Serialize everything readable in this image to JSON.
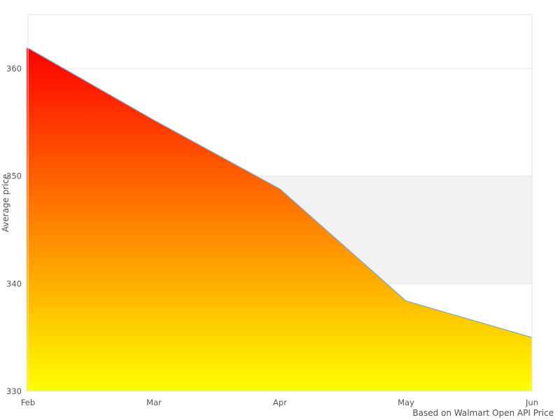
{
  "chart_data": {
    "type": "area",
    "title": "",
    "categories": [
      "Feb",
      "Mar",
      "Apr",
      "May",
      "Jun"
    ],
    "series": [
      {
        "name": "Average price",
        "values": [
          361.9,
          355.2,
          348.8,
          338.4,
          335.0
        ]
      }
    ],
    "xlabel": "",
    "ylabel": "Average price",
    "ylim": [
      330,
      365
    ],
    "yticks": [
      330,
      340,
      350,
      360
    ],
    "grid": true,
    "legend_position": "none",
    "plot_band": {
      "from": 340,
      "to": 350,
      "color": "#f2f2f2"
    },
    "credits": "Based on Walmart Open API Price",
    "colors": {
      "area_gradient_top": "#ff0000",
      "area_gradient_bottom": "#ffff00",
      "line": "#7aa9d4",
      "gridline": "#e6e6e6",
      "plot_border": "#e6e6e6",
      "tick_label": "#555555",
      "axis_title": "#4d4d4d",
      "credits_text": "#4d4d4d"
    }
  }
}
